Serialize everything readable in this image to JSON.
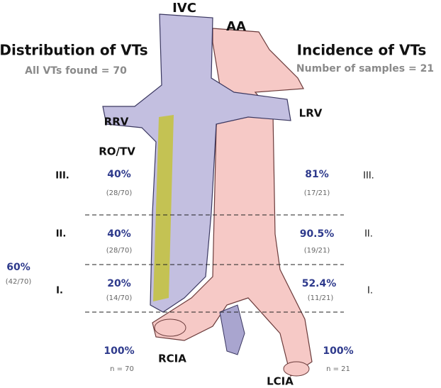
{
  "vessels": {
    "ivc": "IVC",
    "aa": "AA",
    "rrv": "RRV",
    "lrv": "LRV",
    "ro_tv": "RO/TV",
    "rcia": "RCIA",
    "lcia": "LCIA"
  },
  "distribution": {
    "title": "Distribution of VTs",
    "subtitle": "All VTs found = 70",
    "levels": [
      {
        "level": "III.",
        "percent": "40%",
        "count": "(28/70)"
      },
      {
        "level": "II.",
        "percent": "40%",
        "count": "(28/70)"
      },
      {
        "level": "I.",
        "percent": "20%",
        "count": "(14/70)"
      }
    ],
    "combined": {
      "percent": "60%",
      "count": "(42/70)"
    },
    "total": {
      "percent": "100%",
      "count": "n = 70"
    }
  },
  "incidence": {
    "title": "Incidence of VTs",
    "subtitle": "Number of samples = 21",
    "levels": [
      {
        "level": "III.",
        "percent": "81%",
        "count": "(17/21)"
      },
      {
        "level": "II.",
        "percent": "90.5%",
        "count": "(19/21)"
      },
      {
        "level": "I.",
        "percent": "52.4%",
        "count": "(11/21)"
      }
    ],
    "total": {
      "percent": "100%",
      "count": "n = 21"
    }
  }
}
